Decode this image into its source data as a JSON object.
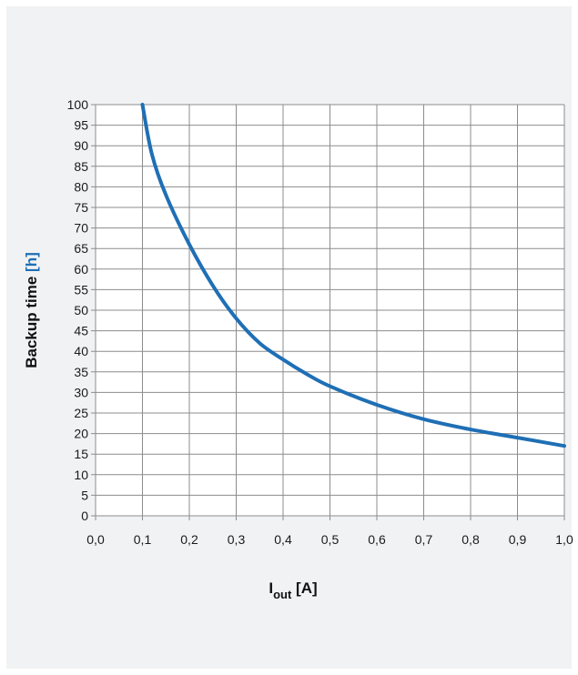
{
  "colors": {
    "background": "#f1f2f3",
    "plot_background": "#ffffff",
    "grid": "#8c8c8c",
    "curve": "#1f6fb5",
    "unit_accent": "#1f6fb5"
  },
  "chart_data": {
    "type": "line",
    "ylabel": {
      "main": "Backup time ",
      "unit": "[h]"
    },
    "xlabel": {
      "main": "I",
      "sub": "out",
      "unit": " [A]"
    },
    "xlim": [
      0.0,
      1.0
    ],
    "ylim": [
      0,
      100
    ],
    "x_ticks": [
      "0,0",
      "0,1",
      "0,2",
      "0,3",
      "0,4",
      "0,5",
      "0,6",
      "0,7",
      "0,8",
      "0,9",
      "1,0"
    ],
    "y_ticks": [
      "0",
      "5",
      "10",
      "15",
      "20",
      "25",
      "30",
      "35",
      "40",
      "45",
      "50",
      "55",
      "60",
      "65",
      "70",
      "75",
      "80",
      "85",
      "90",
      "95",
      "100"
    ],
    "grid": true,
    "series": [
      {
        "x": [
          0.1,
          0.12,
          0.15,
          0.2,
          0.25,
          0.3,
          0.35,
          0.4,
          0.45,
          0.5,
          0.6,
          0.7,
          0.8,
          0.9,
          1.0
        ],
        "values": [
          100,
          88,
          78,
          66,
          56,
          48,
          42,
          38,
          34.5,
          31.5,
          27,
          23.5,
          21,
          19,
          17
        ]
      }
    ]
  }
}
